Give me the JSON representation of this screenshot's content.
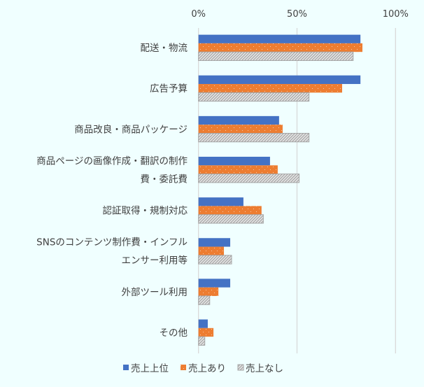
{
  "chart_data": {
    "type": "bar",
    "orientation": "horizontal",
    "categories": [
      [
        "配送・物流"
      ],
      [
        "広告予算"
      ],
      [
        "商品改良・商品パッケージ"
      ],
      [
        "商品ページの画像作成・翻訳の制作",
        "費・委託費"
      ],
      [
        "認証取得・規制対応"
      ],
      [
        "SNSのコンテンツ制作費・インフル",
        "エンサー利用等"
      ],
      [
        "外部ツール利用"
      ],
      [
        "その他"
      ]
    ],
    "series": [
      {
        "name": "売上上位",
        "color": "#4472c4",
        "pattern": "solid",
        "values": [
          82.2,
          82.2,
          40.9,
          36.3,
          22.8,
          16.1,
          16.1,
          4.7
        ]
      },
      {
        "name": "売上あり",
        "color": "#ed7d31",
        "pattern": "dots",
        "values": [
          83.2,
          72.9,
          42.7,
          40.2,
          32.0,
          12.9,
          10.1,
          7.6
        ]
      },
      {
        "name": "売上なし",
        "color": "#a5a5a5",
        "pattern": "diagonal-hatch",
        "values": [
          78.5,
          56.1,
          56.1,
          51.1,
          32.9,
          16.8,
          5.7,
          3.2
        ]
      }
    ],
    "xticks": [
      "0%",
      "50%",
      "100%"
    ],
    "xlim": [
      0,
      100
    ],
    "grid": true,
    "legend": "bottom",
    "background": "#f0ffff"
  }
}
